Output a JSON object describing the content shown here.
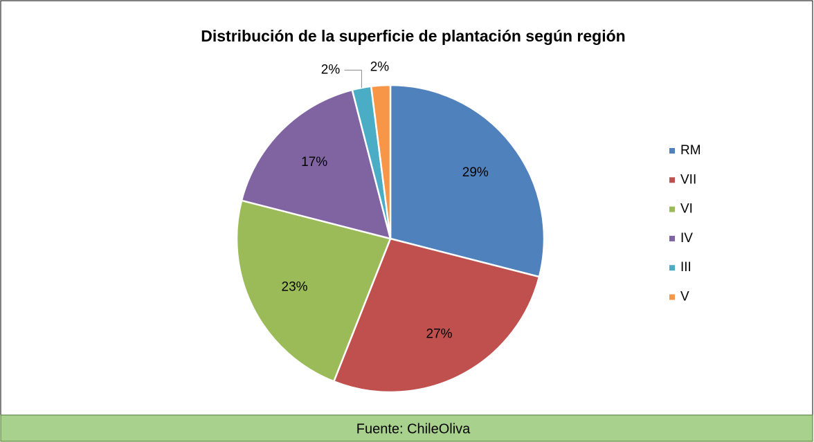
{
  "chart_data": {
    "type": "pie",
    "title": "Distribución de la superficie de plantación según región",
    "categories": [
      "RM",
      "VII",
      "VI",
      "IV",
      "III",
      "V"
    ],
    "values": [
      29,
      27,
      23,
      17,
      2,
      2
    ],
    "value_labels": [
      "29%",
      "27%",
      "23%",
      "17%",
      "2%",
      "2%"
    ],
    "colors": [
      "#4f81bd",
      "#c0504d",
      "#9bbb59",
      "#8064a2",
      "#4bacc6",
      "#f79646"
    ],
    "legend": "right",
    "source": "Fuente: ChileOliva"
  }
}
